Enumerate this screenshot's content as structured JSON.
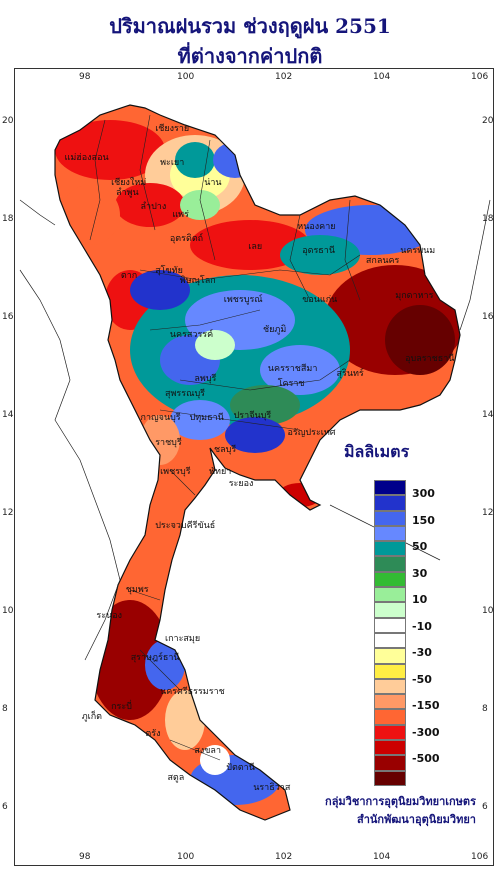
{
  "title_line1": "ปริมาณฝนรวม ช่วงฤดูฝน 2551",
  "title_line2": "ที่ต่างจากค่าปกติ",
  "axes": {
    "top_lon": [
      "98",
      "100",
      "102",
      "104",
      "106"
    ],
    "bottom_lon": [
      "98",
      "100",
      "102",
      "104",
      "106"
    ],
    "left_lat": [
      "20",
      "18",
      "16",
      "14",
      "12",
      "10",
      "8",
      "6"
    ],
    "right_lat": [
      "20",
      "18",
      "16",
      "14",
      "12",
      "10",
      "8",
      "6"
    ]
  },
  "legend": {
    "title": "มิลลิเมตร",
    "colors": [
      "#00008b",
      "#2233cc",
      "#4466ee",
      "#6688ff",
      "#009999",
      "#2e8b57",
      "#33bb33",
      "#99ee99",
      "#ccffcc",
      "#ffffff",
      "#ffffff",
      "#ffff99",
      "#ffee44",
      "#ffcc99",
      "#ff9966",
      "#ff6633",
      "#ee1111",
      "#cc0000",
      "#990000",
      "#660000"
    ],
    "labels": [
      "300",
      "150",
      "50",
      "30",
      "10",
      "-10",
      "-30",
      "-50",
      "-150",
      "-300",
      "-500"
    ]
  },
  "provinces": [
    {
      "name": "เชียงใหม่",
      "lon": 98.9,
      "lat": 18.8
    },
    {
      "name": "แม่ฮ่องสอน",
      "lon": 97.95,
      "lat": 19.3
    },
    {
      "name": "เชียงราย",
      "lon": 99.8,
      "lat": 19.9
    },
    {
      "name": "พะเยา",
      "lon": 99.9,
      "lat": 19.2
    },
    {
      "name": "น่าน",
      "lon": 100.8,
      "lat": 18.8
    },
    {
      "name": "ลำพูน",
      "lon": 99.0,
      "lat": 18.6
    },
    {
      "name": "ลำปาง",
      "lon": 99.5,
      "lat": 18.3
    },
    {
      "name": "แพร่",
      "lon": 100.15,
      "lat": 18.15
    },
    {
      "name": "อุตรดิตถ์",
      "lon": 100.1,
      "lat": 17.65
    },
    {
      "name": "ตาก",
      "lon": 99.1,
      "lat": 16.9
    },
    {
      "name": "สุโขทัย",
      "lon": 99.8,
      "lat": 17.0
    },
    {
      "name": "เลย",
      "lon": 101.7,
      "lat": 17.5
    },
    {
      "name": "หนองคาย",
      "lon": 102.7,
      "lat": 17.9
    },
    {
      "name": "อุดรธานี",
      "lon": 102.8,
      "lat": 17.4
    },
    {
      "name": "สกลนคร",
      "lon": 104.1,
      "lat": 17.2
    },
    {
      "name": "นครพนม",
      "lon": 104.8,
      "lat": 17.4
    },
    {
      "name": "มุกดาหาร",
      "lon": 104.7,
      "lat": 16.5
    },
    {
      "name": "พิษณุโลก",
      "lon": 100.3,
      "lat": 16.8
    },
    {
      "name": "เพชรบูรณ์",
      "lon": 101.2,
      "lat": 16.4
    },
    {
      "name": "ขอนแก่น",
      "lon": 102.8,
      "lat": 16.4
    },
    {
      "name": "นครสวรรค์",
      "lon": 100.1,
      "lat": 15.7
    },
    {
      "name": "ชัยภูมิ",
      "lon": 102.0,
      "lat": 15.8
    },
    {
      "name": "อุบลราชธานี",
      "lon": 104.9,
      "lat": 15.2
    },
    {
      "name": "ลพบุรี",
      "lon": 100.6,
      "lat": 14.8
    },
    {
      "name": "นครราชสีมา",
      "lon": 102.1,
      "lat": 15.0
    },
    {
      "name": "โคราช",
      "lon": 102.3,
      "lat": 14.7
    },
    {
      "name": "สุพรรณบุรี",
      "lon": 100.0,
      "lat": 14.5
    },
    {
      "name": "สุรินทร์",
      "lon": 103.5,
      "lat": 14.9
    },
    {
      "name": "กาญจนบุรี",
      "lon": 99.5,
      "lat": 14.0
    },
    {
      "name": "ปทุมธานี",
      "lon": 100.5,
      "lat": 14.0
    },
    {
      "name": "ปราจีนบุรี",
      "lon": 101.4,
      "lat": 14.05
    },
    {
      "name": "อรัญประเทศ",
      "lon": 102.5,
      "lat": 13.7
    },
    {
      "name": "ราชบุรี",
      "lon": 99.8,
      "lat": 13.5
    },
    {
      "name": "ชลบุรี",
      "lon": 101.0,
      "lat": 13.35
    },
    {
      "name": "เพชรบุรี",
      "lon": 99.9,
      "lat": 12.9
    },
    {
      "name": "พัทยา",
      "lon": 100.9,
      "lat": 12.9
    },
    {
      "name": "ระยอง",
      "lon": 101.3,
      "lat": 12.65
    },
    {
      "name": "ประจวบคีรีขันธ์",
      "lon": 99.8,
      "lat": 11.8
    },
    {
      "name": "ชุมพร",
      "lon": 99.2,
      "lat": 10.5
    },
    {
      "name": "ระนอง",
      "lon": 98.6,
      "lat": 9.95
    },
    {
      "name": "เกาะสมุย",
      "lon": 100.0,
      "lat": 9.5
    },
    {
      "name": "สุราษฎร์ธานี",
      "lon": 99.3,
      "lat": 9.1
    },
    {
      "name": "ภูเก็ต",
      "lon": 98.3,
      "lat": 7.9
    },
    {
      "name": "กระบี่",
      "lon": 98.9,
      "lat": 8.1
    },
    {
      "name": "นครศรีธรรมราช",
      "lon": 99.9,
      "lat": 8.4
    },
    {
      "name": "ตรัง",
      "lon": 99.6,
      "lat": 7.55
    },
    {
      "name": "สงขลา",
      "lon": 100.6,
      "lat": 7.2
    },
    {
      "name": "สตูล",
      "lon": 100.05,
      "lat": 6.65
    },
    {
      "name": "ปัตตานี",
      "lon": 101.25,
      "lat": 6.85
    },
    {
      "name": "นราธิวาส",
      "lon": 101.8,
      "lat": 6.45
    }
  ],
  "credit_line1": "กลุ่มวิชาการอุตุนิยมวิทยาเกษตร",
  "credit_line2": "สำนักพัฒนาอุตุนิยมวิทยา"
}
